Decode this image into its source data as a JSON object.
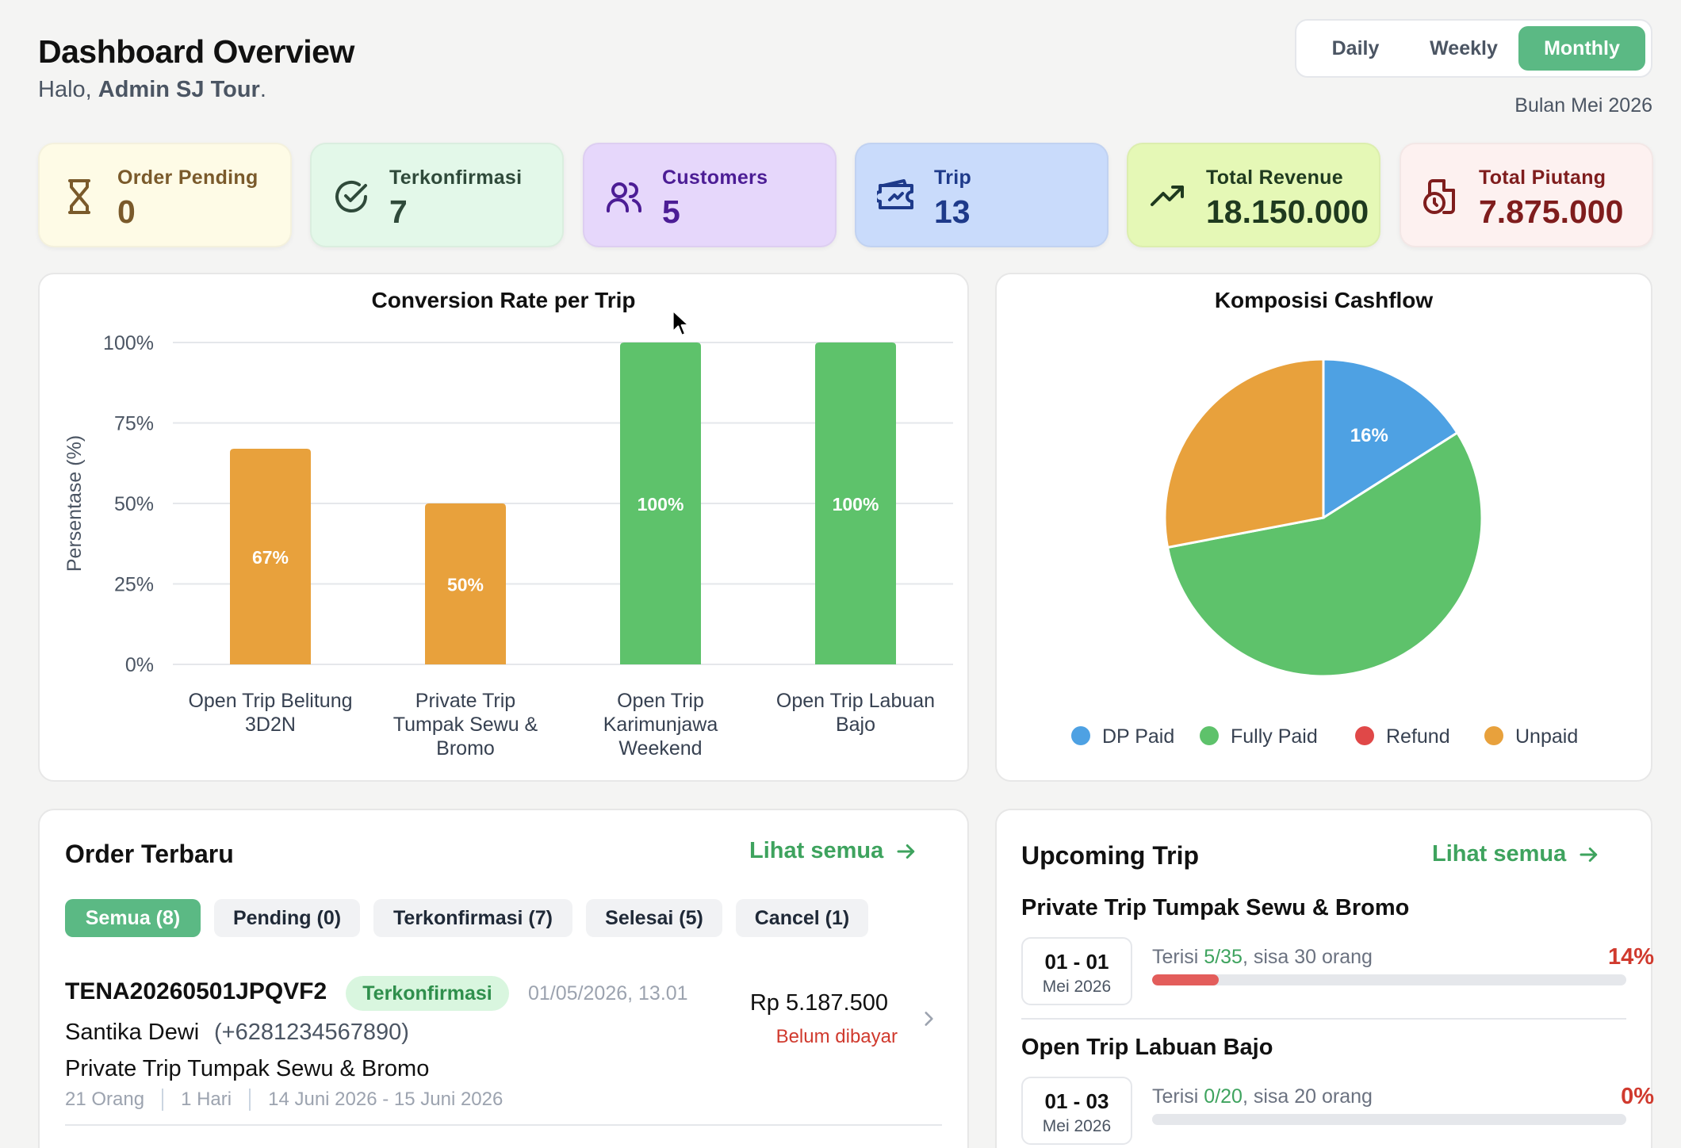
{
  "header": {
    "title": "Dashboard Overview",
    "greeting_prefix": "Halo, ",
    "user_name": "Admin SJ Tour",
    "greeting_suffix": ".",
    "period_tabs": [
      "Daily",
      "Weekly",
      "Monthly"
    ],
    "active_period": "Monthly",
    "period_label": "Bulan Mei 2026"
  },
  "stats": [
    {
      "label": "Order Pending",
      "value": "0",
      "icon": "hourglass-icon",
      "bg": "#fefbe6",
      "color": "#7a5a2b"
    },
    {
      "label": "Terkonfirmasi",
      "value": "7",
      "icon": "check-circle-icon",
      "bg": "#e3f8e9",
      "color": "#2f4a3a"
    },
    {
      "label": "Customers",
      "value": "5",
      "icon": "users-icon",
      "bg": "#e6d7fb",
      "color": "#4c1d95"
    },
    {
      "label": "Trip",
      "value": "13",
      "icon": "ticket-icon",
      "bg": "#c9dbfb",
      "color": "#1e3a8a"
    },
    {
      "label": "Total Revenue",
      "value": "18.150.000",
      "icon": "trending-up-icon",
      "bg": "#e5f8b6",
      "color": "#1f3a1f"
    },
    {
      "label": "Total Piutang",
      "value": "7.875.000",
      "icon": "file-clock-icon",
      "bg": "#fdf1f0",
      "color": "#7f1d1d"
    }
  ],
  "chart_data": [
    {
      "type": "bar",
      "title": "Conversion Rate per Trip",
      "ylabel": "Persentase (%)",
      "xlabel": "",
      "ylim": [
        0,
        100
      ],
      "yticks": [
        "0%",
        "25%",
        "50%",
        "75%",
        "100%"
      ],
      "categories": [
        [
          "Open Trip Belitung",
          "3D2N"
        ],
        [
          "Private Trip",
          "Tumpak Sewu &",
          "Bromo"
        ],
        [
          "Open Trip",
          "Karimunjawa",
          "Weekend"
        ],
        [
          "Open Trip Labuan",
          "Bajo"
        ]
      ],
      "values": [
        67,
        50,
        100,
        100
      ],
      "data_labels": [
        "67%",
        "50%",
        "100%",
        "100%"
      ],
      "bar_colors": [
        "#e8a13c",
        "#e8a13c",
        "#5ec26b",
        "#5ec26b"
      ],
      "grid": true
    },
    {
      "type": "pie",
      "title": "Komposisi Cashflow",
      "labels": [
        "DP Paid",
        "Fully Paid",
        "Refund",
        "Unpaid"
      ],
      "values": [
        16,
        56,
        0,
        28
      ],
      "colors": [
        "#4ea1e3",
        "#5ec26b",
        "#e04848",
        "#e8a13c"
      ],
      "data_labels": [
        "16%",
        "",
        "",
        ""
      ],
      "legend_position": "bottom"
    }
  ],
  "orders": {
    "heading": "Order Terbaru",
    "see_all": "Lihat semua",
    "filters": [
      "Semua (8)",
      "Pending (0)",
      "Terkonfirmasi (7)",
      "Selesai (5)",
      "Cancel (1)"
    ],
    "items": [
      {
        "code": "TENA20260501JPQVF2",
        "status": "Terkonfirmasi",
        "datetime": "01/05/2026, 13.01",
        "customer": "Santika Dewi",
        "phone": "(+6281234567890)",
        "trip": "Private Trip Tumpak Sewu & Bromo",
        "pax": "21 Orang",
        "duration": "1 Hari",
        "dates": "14 Juni 2026 - 15 Juni 2026",
        "price": "Rp 5.187.500",
        "payment": "Belum dibayar"
      }
    ]
  },
  "upcoming": {
    "heading": "Upcoming Trip",
    "see_all": "Lihat semua",
    "trips": [
      {
        "name": "Private Trip Tumpak Sewu & Bromo",
        "date": "01 - 01",
        "month": "Mei 2026",
        "filled_prefix": "Terisi ",
        "filled": "5/35",
        "remaining": ", sisa 30 orang",
        "percent": "14%",
        "fill_fraction": 0.14
      },
      {
        "name": "Open Trip Labuan Bajo",
        "date": "01 - 03",
        "month": "Mei 2026",
        "filled_prefix": "Terisi ",
        "filled": "0/20",
        "remaining": ", sisa 20 orang",
        "percent": "0%",
        "fill_fraction": 0
      }
    ]
  }
}
